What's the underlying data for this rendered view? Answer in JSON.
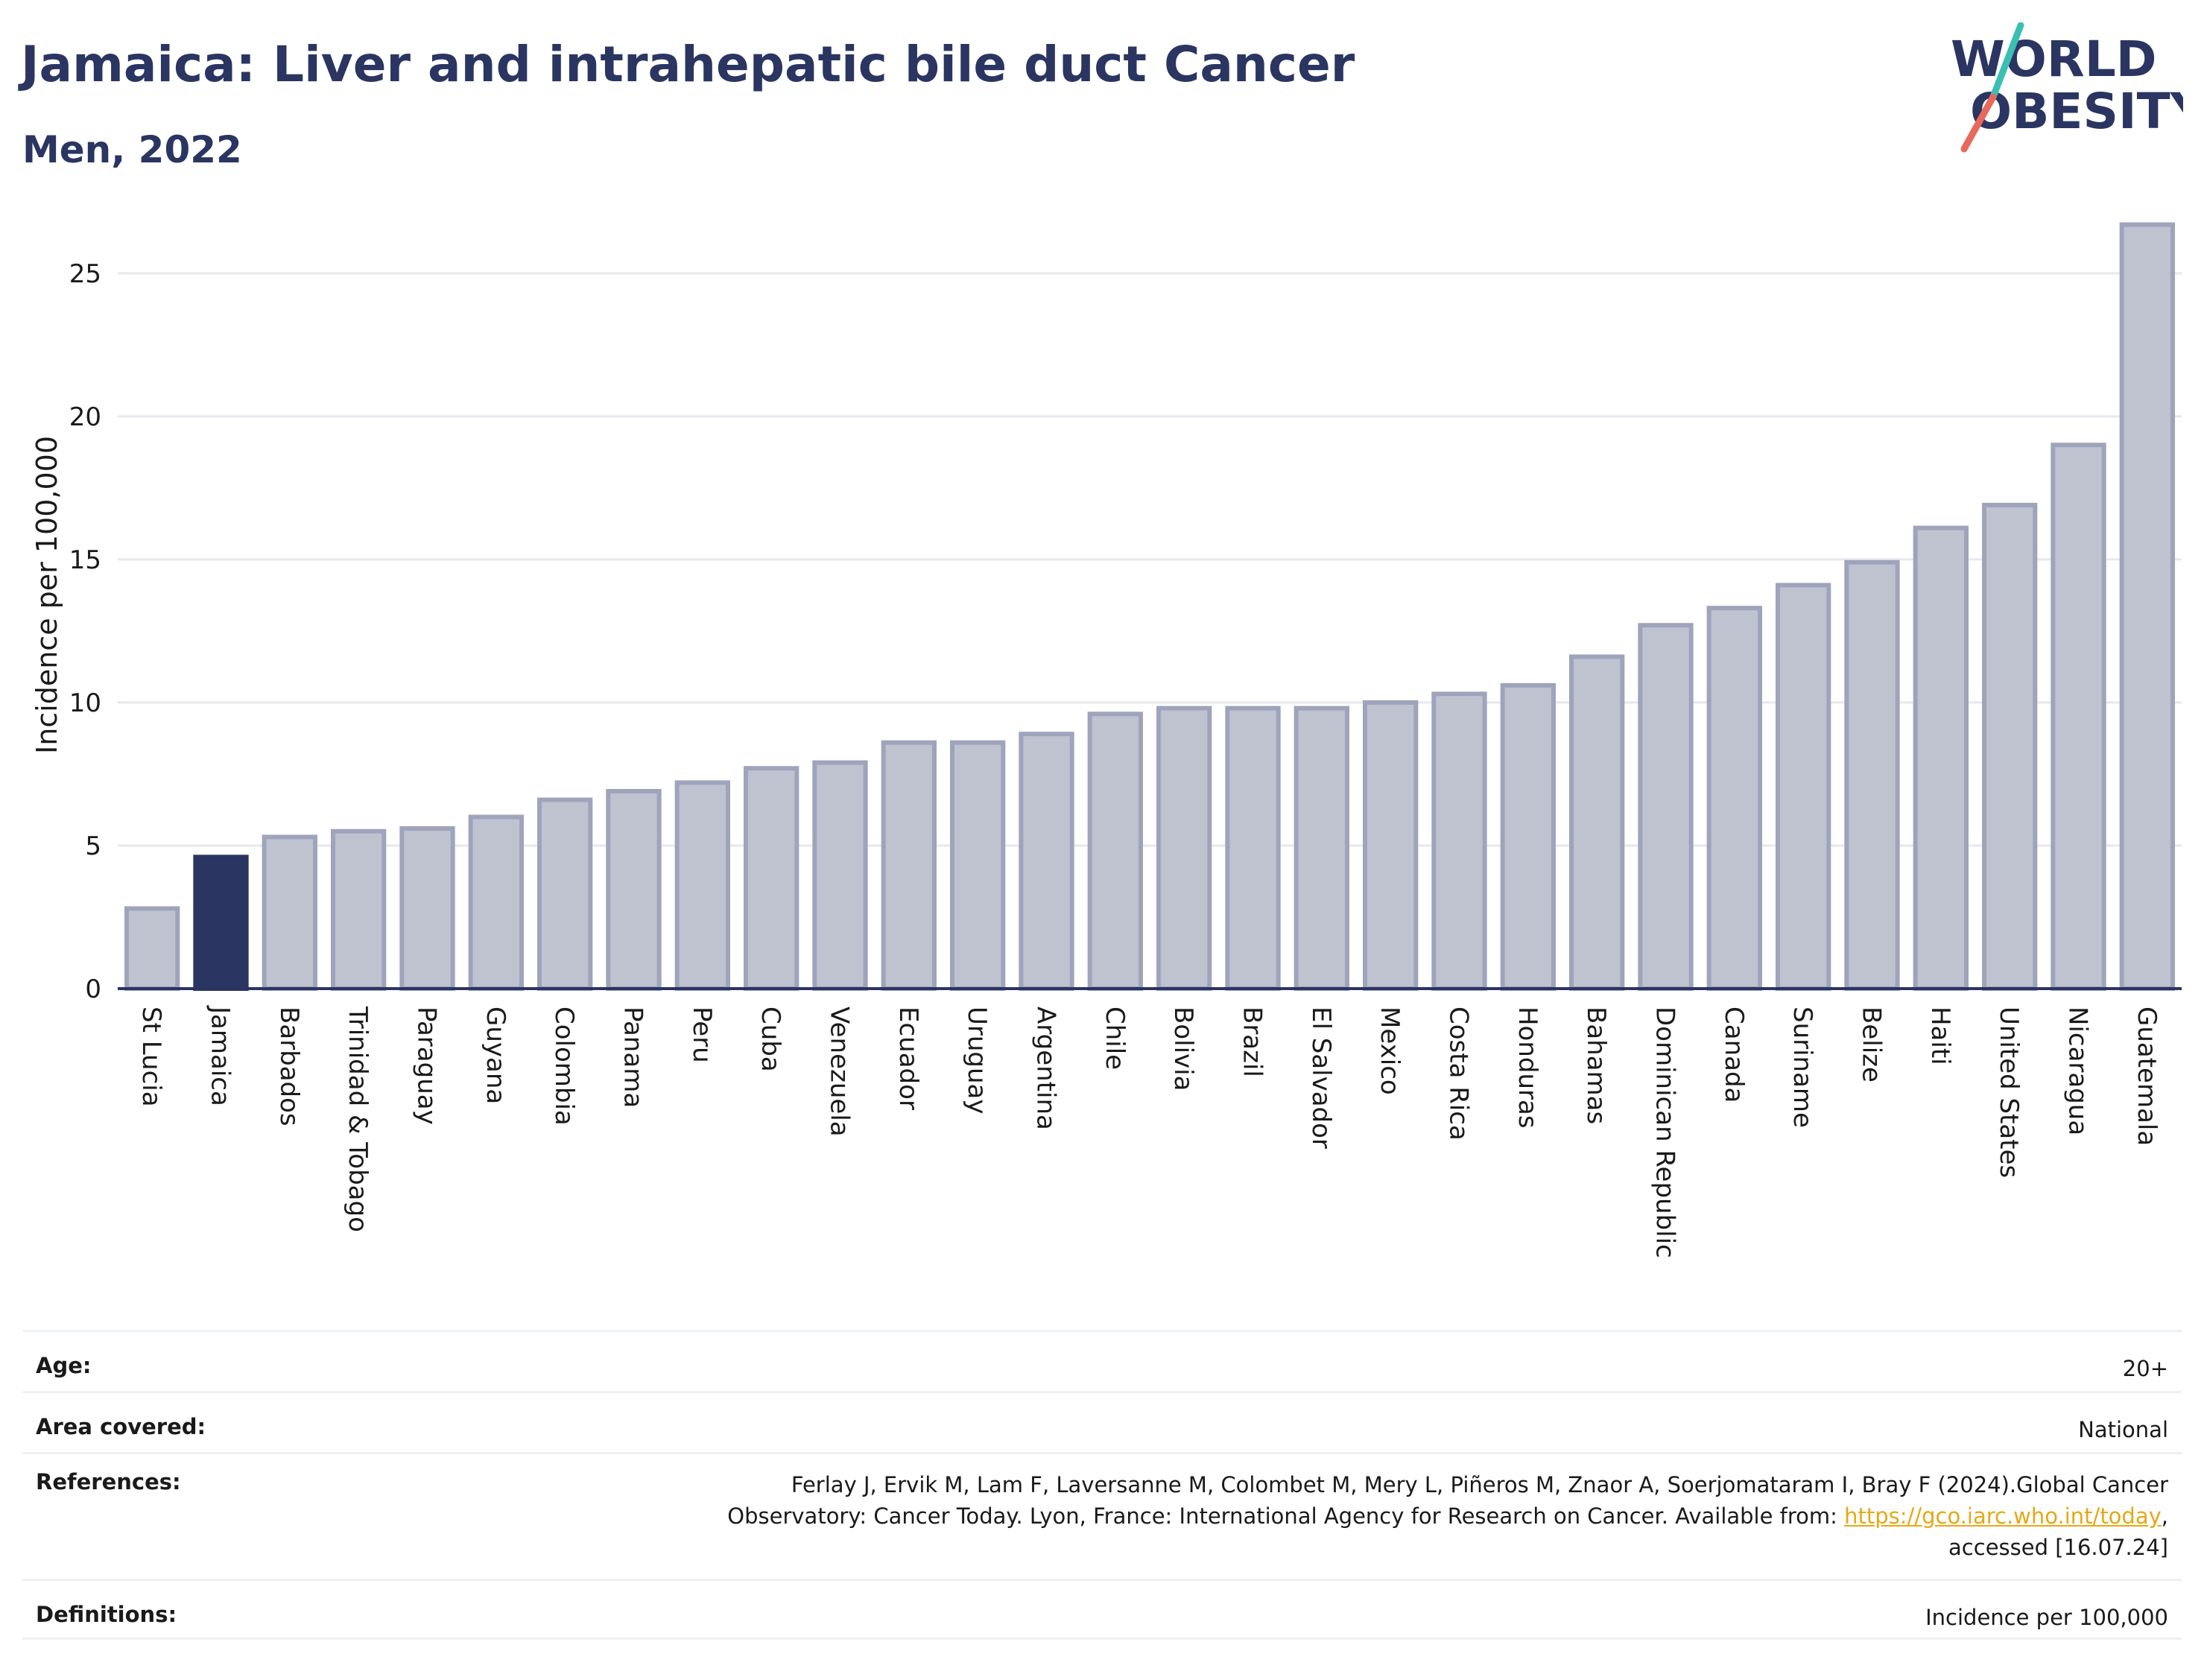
{
  "header": {
    "title": "Jamaica: Liver and intrahepatic bile duct Cancer",
    "subtitle": "Men, 2022"
  },
  "logo": {
    "line1": "WORLD",
    "line2": "OBESITY",
    "accent_colors": [
      "#3bbfb3",
      "#e8685a"
    ]
  },
  "colors": {
    "highlight_bar": "#2a3561",
    "bar_fill": "#bfc3d0",
    "bar_stroke": "#9ea4bb",
    "axis": "#2a3561",
    "grid": "#e6e8ee",
    "link": "#e6a817"
  },
  "chart_data": {
    "type": "bar",
    "title": "",
    "xlabel": "",
    "ylabel": "Incidence per 100,000",
    "ylim": [
      0,
      27
    ],
    "yticks": [
      0,
      5,
      10,
      15,
      20,
      25
    ],
    "grid": true,
    "highlight": "Jamaica",
    "categories": [
      "St Lucia",
      "Jamaica",
      "Barbados",
      "Trinidad & Tobago",
      "Paraguay",
      "Guyana",
      "Colombia",
      "Panama",
      "Peru",
      "Cuba",
      "Venezuela",
      "Ecuador",
      "Uruguay",
      "Argentina",
      "Chile",
      "Bolivia",
      "Brazil",
      "El Salvador",
      "Mexico",
      "Costa Rica",
      "Honduras",
      "Bahamas",
      "Dominican Republic",
      "Canada",
      "Suriname",
      "Belize",
      "Haiti",
      "United States",
      "Nicaragua",
      "Guatemala"
    ],
    "values": [
      2.8,
      4.6,
      5.3,
      5.5,
      5.6,
      6.0,
      6.6,
      6.9,
      7.2,
      7.7,
      7.9,
      8.6,
      8.6,
      8.9,
      9.6,
      9.8,
      9.8,
      9.8,
      10.0,
      10.3,
      10.6,
      11.6,
      12.7,
      13.3,
      14.1,
      14.9,
      16.1,
      16.9,
      19.0,
      26.7
    ]
  },
  "info": {
    "age_label": "Age:",
    "age_value": "20+",
    "area_label": "Area covered:",
    "area_value": "National",
    "references_label": "References:",
    "references_line1": "Ferlay J, Ervik M, Lam F, Laversanne M, Colombet M, Mery L, Piñeros M, Znaor A, Soerjomataram I, Bray F (2024).Global Cancer",
    "references_line2_prefix": "Observatory: Cancer Today. Lyon, France: International Agency for Research on Cancer. Available from: ",
    "references_link": "https://gco.iarc.who.int/today",
    "references_line2_suffix": ",",
    "references_line3": "accessed [16.07.24]",
    "definitions_label": "Definitions:",
    "definitions_value": "Incidence per 100,000"
  }
}
